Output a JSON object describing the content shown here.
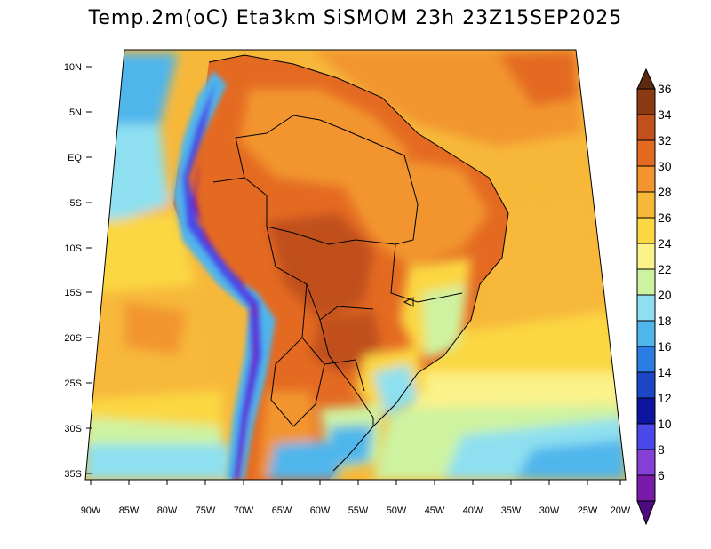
{
  "title": "Temp.2m(oC) Eta3km SiSMOM 23h 23Z15SEP2025",
  "lat_labels": [
    "10N",
    "5N",
    "EQ",
    "5S",
    "10S",
    "15S",
    "20S",
    "25S",
    "30S",
    "35S"
  ],
  "lon_labels": [
    "90W",
    "85W",
    "80W",
    "75W",
    "70W",
    "65W",
    "60W",
    "55W",
    "50W",
    "45W",
    "40W",
    "35W",
    "30W",
    "25W",
    "20W"
  ],
  "colorbar": {
    "labels": [
      "36",
      "34",
      "32",
      "30",
      "28",
      "26",
      "24",
      "22",
      "20",
      "18",
      "16",
      "14",
      "12",
      "10",
      "8",
      "6"
    ],
    "colors": [
      "#5c2a0f",
      "#8b3a12",
      "#c0501c",
      "#e46a22",
      "#f2952f",
      "#f7b83a",
      "#fbd743",
      "#fbf28a",
      "#cdf3a0",
      "#8ee0f0",
      "#4fb6ec",
      "#2a7de2",
      "#1b47c6",
      "#0d14a0",
      "#4a48e8",
      "#8440d6",
      "#7a1aa8",
      "#4e0a80"
    ]
  }
}
